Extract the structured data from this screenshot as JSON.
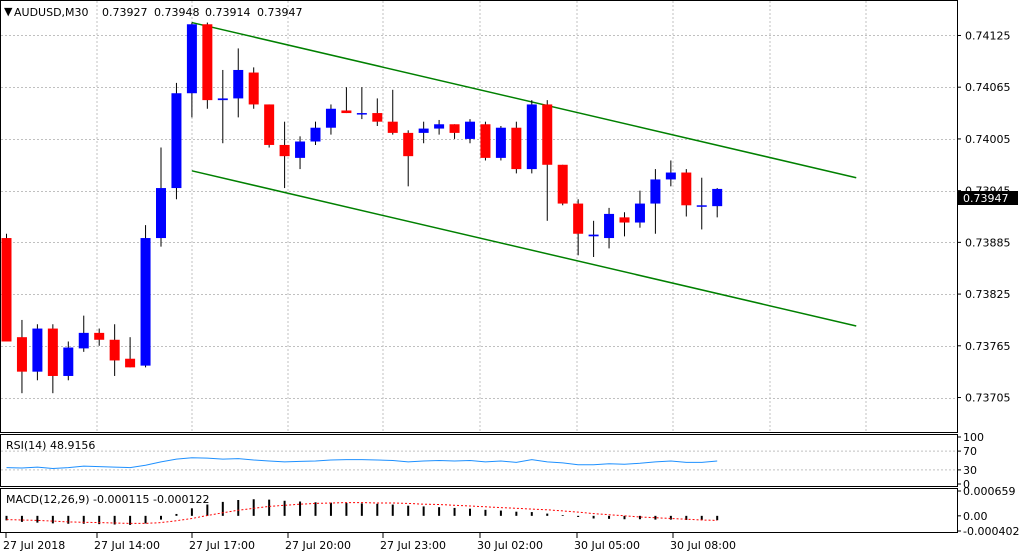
{
  "chart_data": {
    "type": "candlestick",
    "symbol_timeframe": "AUDUSD,M30",
    "header_prices": [
      "0.73927",
      "0.73948",
      "0.73914",
      "0.73947"
    ],
    "ylim": [
      0.73665,
      0.74165
    ],
    "y_ticks": [
      "0.74125",
      "0.74065",
      "0.74005",
      "0.73945",
      "0.73885",
      "0.73825",
      "0.73765",
      "0.73705"
    ],
    "current_price": "0.73947",
    "x_tick_labels": [
      "27 Jul 2018",
      "27 Jul 14:00",
      "27 Jul 17:00",
      "27 Jul 20:00",
      "27 Jul 23:00",
      "30 Jul 02:00",
      "30 Jul 05:00",
      "30 Jul 08:00"
    ],
    "colors": {
      "bull": "#0000ff",
      "bear": "#ff0000",
      "wick": "#000000",
      "channel": "#008000",
      "rsi": "#1e90ff",
      "macd_signal": "#ff0000",
      "grid": "#c0c0c0"
    },
    "candles": [
      {
        "o": 0.7389,
        "h": 0.73895,
        "l": 0.7377,
        "c": 0.7377
      },
      {
        "o": 0.73775,
        "h": 0.73795,
        "l": 0.7371,
        "c": 0.73735
      },
      {
        "o": 0.73735,
        "h": 0.7379,
        "l": 0.73725,
        "c": 0.73785
      },
      {
        "o": 0.73785,
        "h": 0.7379,
        "l": 0.7371,
        "c": 0.7373
      },
      {
        "o": 0.7373,
        "h": 0.7377,
        "l": 0.73725,
        "c": 0.73763
      },
      {
        "o": 0.73762,
        "h": 0.738,
        "l": 0.73758,
        "c": 0.7378
      },
      {
        "o": 0.7378,
        "h": 0.73785,
        "l": 0.73765,
        "c": 0.73772
      },
      {
        "o": 0.73772,
        "h": 0.7379,
        "l": 0.7373,
        "c": 0.73748
      },
      {
        "o": 0.7375,
        "h": 0.73775,
        "l": 0.7374,
        "c": 0.7374
      },
      {
        "o": 0.73742,
        "h": 0.73905,
        "l": 0.7374,
        "c": 0.7389
      },
      {
        "o": 0.7389,
        "h": 0.73995,
        "l": 0.7388,
        "c": 0.73948
      },
      {
        "o": 0.73948,
        "h": 0.7407,
        "l": 0.73935,
        "c": 0.74058
      },
      {
        "o": 0.74058,
        "h": 0.7414,
        "l": 0.7403,
        "c": 0.74138
      },
      {
        "o": 0.74138,
        "h": 0.7414,
        "l": 0.7404,
        "c": 0.7405
      },
      {
        "o": 0.7405,
        "h": 0.74085,
        "l": 0.74,
        "c": 0.74052
      },
      {
        "o": 0.74052,
        "h": 0.7411,
        "l": 0.7403,
        "c": 0.74085
      },
      {
        "o": 0.74082,
        "h": 0.74088,
        "l": 0.7404,
        "c": 0.74045
      },
      {
        "o": 0.74045,
        "h": 0.74045,
        "l": 0.73995,
        "c": 0.73998
      },
      {
        "o": 0.73998,
        "h": 0.74025,
        "l": 0.73948,
        "c": 0.73985
      },
      {
        "o": 0.73983,
        "h": 0.74008,
        "l": 0.7397,
        "c": 0.74002
      },
      {
        "o": 0.74002,
        "h": 0.74025,
        "l": 0.73998,
        "c": 0.74018
      },
      {
        "o": 0.74018,
        "h": 0.74045,
        "l": 0.7401,
        "c": 0.7404
      },
      {
        "o": 0.74038,
        "h": 0.74065,
        "l": 0.74035,
        "c": 0.74035
      },
      {
        "o": 0.74035,
        "h": 0.74065,
        "l": 0.74028,
        "c": 0.74035
      },
      {
        "o": 0.74035,
        "h": 0.74052,
        "l": 0.7402,
        "c": 0.74025
      },
      {
        "o": 0.74025,
        "h": 0.74062,
        "l": 0.7401,
        "c": 0.74012
      },
      {
        "o": 0.74012,
        "h": 0.74015,
        "l": 0.7395,
        "c": 0.73985
      },
      {
        "o": 0.74012,
        "h": 0.74025,
        "l": 0.74,
        "c": 0.74017
      },
      {
        "o": 0.74017,
        "h": 0.74027,
        "l": 0.7401,
        "c": 0.74022
      },
      {
        "o": 0.74022,
        "h": 0.74022,
        "l": 0.74005,
        "c": 0.74012
      },
      {
        "o": 0.74005,
        "h": 0.74028,
        "l": 0.74,
        "c": 0.74025
      },
      {
        "o": 0.74022,
        "h": 0.74025,
        "l": 0.7398,
        "c": 0.73983
      },
      {
        "o": 0.73983,
        "h": 0.7402,
        "l": 0.7398,
        "c": 0.74018
      },
      {
        "o": 0.74018,
        "h": 0.74025,
        "l": 0.73965,
        "c": 0.7397
      },
      {
        "o": 0.7397,
        "h": 0.7405,
        "l": 0.73965,
        "c": 0.74045
      },
      {
        "o": 0.74045,
        "h": 0.7405,
        "l": 0.7391,
        "c": 0.73975
      },
      {
        "o": 0.73975,
        "h": 0.73975,
        "l": 0.73928,
        "c": 0.7393
      },
      {
        "o": 0.7393,
        "h": 0.73935,
        "l": 0.7387,
        "c": 0.73895
      },
      {
        "o": 0.73892,
        "h": 0.7391,
        "l": 0.73868,
        "c": 0.73894
      },
      {
        "o": 0.7389,
        "h": 0.73925,
        "l": 0.73878,
        "c": 0.73918
      },
      {
        "o": 0.73914,
        "h": 0.7392,
        "l": 0.73892,
        "c": 0.73908
      },
      {
        "o": 0.73908,
        "h": 0.73945,
        "l": 0.73902,
        "c": 0.7393
      },
      {
        "o": 0.7393,
        "h": 0.7397,
        "l": 0.73895,
        "c": 0.73958
      },
      {
        "o": 0.73958,
        "h": 0.7398,
        "l": 0.7395,
        "c": 0.73966
      },
      {
        "o": 0.73966,
        "h": 0.7397,
        "l": 0.73915,
        "c": 0.73928
      },
      {
        "o": 0.73927,
        "h": 0.7396,
        "l": 0.739,
        "c": 0.73928
      },
      {
        "o": 0.73927,
        "h": 0.73948,
        "l": 0.73914,
        "c": 0.73947
      }
    ],
    "channel_lines": [
      {
        "name": "upper",
        "from_index": 12,
        "from_price": 0.7414,
        "to_index": 55,
        "to_price": 0.7396
      },
      {
        "name": "lower",
        "from_index": 12,
        "from_price": 0.73968,
        "to_index": 55,
        "to_price": 0.73788
      }
    ],
    "rsi": {
      "label": "RSI(14) 48.9156",
      "y_ticks": [
        "100",
        "70",
        "30",
        "0"
      ],
      "ylim": [
        0,
        100
      ],
      "values": [
        35,
        34,
        36,
        33,
        35,
        38,
        37,
        36,
        35,
        40,
        47,
        53,
        56,
        55,
        53,
        54,
        51,
        49,
        47,
        48,
        49,
        51,
        52,
        52,
        51,
        50,
        47,
        49,
        50,
        49,
        50,
        47,
        49,
        46,
        52,
        47,
        45,
        41,
        41,
        43,
        42,
        44,
        47,
        49,
        46,
        46,
        49
      ]
    },
    "macd": {
      "label": "MACD(12,26,9) -0.000115 -0.000122",
      "y_ticks": [
        "0.000659",
        "0.00",
        "-0.000402"
      ],
      "ylim": [
        -0.000402,
        0.000659
      ],
      "histogram": [
        -0.00012,
        -0.00016,
        -0.00018,
        -0.0002,
        -0.00021,
        -0.00021,
        -0.00022,
        -0.00023,
        -0.00024,
        -0.0002,
        -0.0001,
        5e-05,
        0.0002,
        0.0003,
        0.00037,
        0.00042,
        0.00044,
        0.00043,
        0.0004,
        0.00038,
        0.00036,
        0.00035,
        0.00034,
        0.00033,
        0.00032,
        0.0003,
        0.00027,
        0.00025,
        0.00023,
        0.00021,
        0.00019,
        0.00016,
        0.00014,
        0.00011,
        0.0001,
        6e-05,
        2e-05,
        -3e-05,
        -7e-05,
        -8e-05,
        -9e-05,
        -9e-05,
        -0.0001,
        -0.0001,
        -0.00011,
        -0.00011,
        -0.000115
      ],
      "signal": [
        -0.0001,
        -0.00011,
        -0.00012,
        -0.00014,
        -0.00016,
        -0.00017,
        -0.00018,
        -0.00019,
        -0.0002,
        -0.0002,
        -0.00018,
        -0.00013,
        -7e-05,
        1e-05,
        8e-05,
        0.00015,
        0.0002,
        0.00025,
        0.00028,
        0.00031,
        0.00033,
        0.00034,
        0.00035,
        0.00035,
        0.00034,
        0.00034,
        0.00033,
        0.00031,
        0.0003,
        0.00028,
        0.00026,
        0.00024,
        0.00022,
        0.0002,
        0.00018,
        0.00016,
        0.00013,
        0.0001,
        6e-05,
        3e-05,
        0.0,
        -3e-05,
        -5e-05,
        -7e-05,
        -9e-05,
        -0.00011,
        -0.000122
      ]
    }
  }
}
